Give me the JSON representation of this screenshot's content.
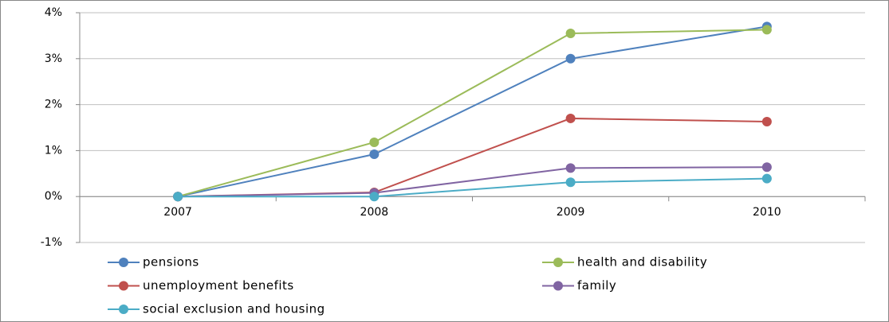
{
  "chart_data": {
    "type": "line",
    "categories": [
      "2007",
      "2008",
      "2009",
      "2010"
    ],
    "series": [
      {
        "name": "pensions",
        "color": "#4f81bd",
        "values": [
          0,
          0.92,
          3.0,
          3.7
        ]
      },
      {
        "name": "health and disability",
        "color": "#9bbb59",
        "values": [
          0,
          1.18,
          3.55,
          3.63
        ]
      },
      {
        "name": "unemployment benefits",
        "color": "#c0504d",
        "values": [
          0,
          0.09,
          1.7,
          1.63
        ]
      },
      {
        "name": "family",
        "color": "#8064a2",
        "values": [
          0,
          0.08,
          0.62,
          0.64
        ]
      },
      {
        "name": "social exclusion and housing",
        "color": "#4bacc6",
        "values": [
          0,
          0,
          0.31,
          0.39
        ]
      }
    ],
    "ylim": [
      -1,
      4
    ],
    "yticks": [
      {
        "value": -1,
        "label": "-1%"
      },
      {
        "value": 0,
        "label": "0%"
      },
      {
        "value": 1,
        "label": "1%"
      },
      {
        "value": 2,
        "label": "2%"
      },
      {
        "value": 3,
        "label": "3%"
      },
      {
        "value": 4,
        "label": "4%"
      }
    ],
    "grid": true,
    "legend": "bottom",
    "markers": true
  }
}
